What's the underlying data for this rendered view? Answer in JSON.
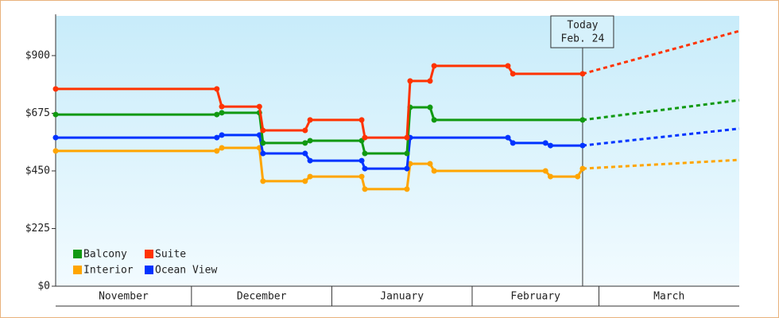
{
  "chart_data": {
    "type": "line",
    "ylim": [
      0,
      1055
    ],
    "yticks": [
      {
        "value": 0,
        "label": "$0"
      },
      {
        "value": 225,
        "label": "$225"
      },
      {
        "value": 450,
        "label": "$450"
      },
      {
        "value": 675,
        "label": "$675"
      },
      {
        "value": 900,
        "label": "$900"
      }
    ],
    "xlim": [
      0,
      151
    ],
    "xticks": [
      0,
      30,
      61,
      92,
      120,
      151
    ],
    "categories": [
      "November",
      "December",
      "January",
      "February",
      "March"
    ],
    "legend": "bottom-left",
    "series": [
      {
        "name": "Balcony",
        "color": "#119911",
        "x": [
          0,
          35.6,
          36.7,
          45,
          45.8,
          55.1,
          56.2,
          67.6,
          68.3,
          77.6,
          78.3,
          82.7,
          83.6,
          116.4
        ],
        "values": [
          670,
          670,
          677,
          677,
          559,
          559,
          568,
          568,
          518,
          518,
          698,
          698,
          649,
          649
        ],
        "forecast_x": [
          116.4,
          151
        ],
        "forecast_values": [
          649,
          726
        ]
      },
      {
        "name": "Suite",
        "color": "#ff3300",
        "x": [
          0,
          35.6,
          36.7,
          45,
          45.8,
          55.1,
          56.2,
          67.6,
          68.3,
          77.6,
          78.3,
          82.7,
          83.6,
          99.9,
          101,
          116.4
        ],
        "values": [
          770,
          770,
          701,
          701,
          608,
          608,
          649,
          649,
          580,
          580,
          801,
          801,
          860,
          860,
          829,
          829
        ],
        "forecast_x": [
          116.4,
          151
        ],
        "forecast_values": [
          829,
          996
        ]
      },
      {
        "name": "Interior",
        "color": "#ffa500",
        "x": [
          0,
          35.6,
          36.7,
          45,
          45.8,
          55.1,
          56.2,
          67.6,
          68.3,
          77.6,
          78.3,
          82.7,
          83.6,
          108.2,
          109.3,
          115.3,
          116.4
        ],
        "values": [
          528,
          528,
          540,
          540,
          410,
          410,
          428,
          428,
          379,
          379,
          478,
          478,
          450,
          450,
          428,
          428,
          459
        ],
        "forecast_x": [
          116.4,
          151
        ],
        "forecast_values": [
          459,
          493
        ]
      },
      {
        "name": "Ocean View",
        "color": "#0033ff",
        "x": [
          0,
          35.6,
          36.7,
          45,
          45.8,
          55.1,
          56.2,
          67.6,
          68.3,
          77.6,
          78.3,
          99.9,
          101,
          108.2,
          109.3,
          116.4
        ],
        "values": [
          580,
          580,
          590,
          590,
          518,
          518,
          490,
          490,
          459,
          459,
          580,
          580,
          559,
          559,
          549,
          549
        ],
        "forecast_x": [
          116.4,
          151
        ],
        "forecast_values": [
          549,
          615
        ]
      }
    ],
    "annotation": {
      "lines": [
        "Today",
        "Feb. 24"
      ],
      "x": 116.4
    }
  }
}
